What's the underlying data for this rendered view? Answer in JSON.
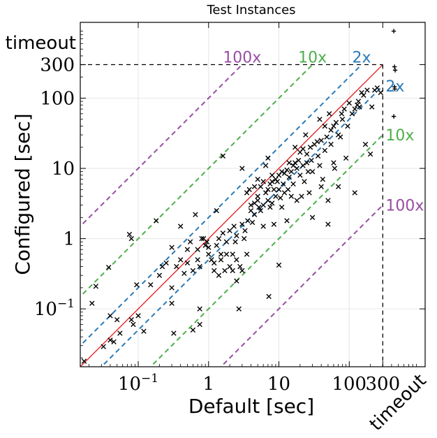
{
  "chart_data": {
    "type": "scatter",
    "title": "Test Instances",
    "xlabel": "Default [sec]",
    "ylabel": "Configured [sec]",
    "xscale": "log",
    "yscale": "log",
    "xlim": [
      0.015,
      1200
    ],
    "ylim": [
      0.015,
      1200
    ],
    "x_ticks": [
      {
        "value": 0.1,
        "mant": "10",
        "exp": "−1"
      },
      {
        "value": 1,
        "mant": "1",
        "exp": ""
      },
      {
        "value": 10,
        "mant": "10",
        "exp": ""
      },
      {
        "value": 100,
        "mant": "100",
        "exp": ""
      },
      {
        "value": 300,
        "mant": "300",
        "exp": ""
      }
    ],
    "y_ticks": [
      {
        "value": 0.1,
        "mant": "10",
        "exp": "−1"
      },
      {
        "value": 1,
        "mant": "1",
        "exp": ""
      },
      {
        "value": 10,
        "mant": "10",
        "exp": ""
      },
      {
        "value": 100,
        "mant": "100",
        "exp": ""
      },
      {
        "value": 300,
        "mant": "300",
        "exp": ""
      }
    ],
    "timeout_value": 300,
    "timeout_label_x": "timeout",
    "timeout_label_y": "timeout",
    "grid": true,
    "diagonal_color": "#e31a1c",
    "reference_lines": [
      {
        "factor": 2,
        "label": "2x",
        "color": "#2a7ab8"
      },
      {
        "factor": 10,
        "label": "10x",
        "color": "#4daf4a"
      },
      {
        "factor": 100,
        "label": "100x",
        "color": "#984ea3"
      }
    ],
    "points": [
      [
        0.017,
        0.018
      ],
      [
        0.022,
        0.12
      ],
      [
        0.025,
        0.21
      ],
      [
        0.032,
        0.029
      ],
      [
        0.038,
        0.39
      ],
      [
        0.04,
        0.08
      ],
      [
        0.04,
        0.036
      ],
      [
        0.045,
        0.034
      ],
      [
        0.05,
        0.07
      ],
      [
        0.055,
        0.045
      ],
      [
        0.08,
        0.07
      ],
      [
        0.085,
        0.06
      ],
      [
        0.075,
        1.15
      ],
      [
        0.08,
        1.0
      ],
      [
        0.095,
        0.22
      ],
      [
        0.1,
        0.08
      ],
      [
        0.12,
        0.048
      ],
      [
        0.15,
        0.22
      ],
      [
        0.18,
        1.8
      ],
      [
        0.2,
        0.3
      ],
      [
        0.22,
        0.4
      ],
      [
        0.25,
        0.45
      ],
      [
        0.3,
        0.2
      ],
      [
        0.3,
        0.12
      ],
      [
        0.3,
        0.75
      ],
      [
        0.32,
        0.045
      ],
      [
        0.35,
        0.4
      ],
      [
        0.4,
        0.5
      ],
      [
        0.4,
        1.5
      ],
      [
        0.45,
        0.32
      ],
      [
        0.5,
        0.7
      ],
      [
        0.5,
        0.45
      ],
      [
        0.55,
        0.9
      ],
      [
        0.6,
        0.35
      ],
      [
        0.6,
        0.05
      ],
      [
        0.65,
        2.2
      ],
      [
        0.7,
        0.7
      ],
      [
        0.7,
        0.5
      ],
      [
        0.75,
        0.4
      ],
      [
        0.75,
        0.1
      ],
      [
        0.75,
        0.06
      ],
      [
        0.8,
        1.0
      ],
      [
        0.85,
        1.0
      ],
      [
        0.9,
        0.8
      ],
      [
        0.95,
        0.9
      ],
      [
        1.0,
        0.6
      ],
      [
        1.0,
        0.75
      ],
      [
        1.1,
        0.5
      ],
      [
        1.2,
        0.35
      ],
      [
        1.2,
        0.45
      ],
      [
        1.3,
        0.8
      ],
      [
        1.3,
        2.5
      ],
      [
        1.4,
        1.0
      ],
      [
        1.4,
        0.3
      ],
      [
        1.5,
        0.5
      ],
      [
        1.5,
        0.6
      ],
      [
        1.6,
        15
      ],
      [
        1.6,
        1.2
      ],
      [
        1.7,
        0.35
      ],
      [
        1.8,
        0.6
      ],
      [
        1.8,
        0.9
      ],
      [
        2.0,
        1.3
      ],
      [
        2.0,
        0.4
      ],
      [
        2.2,
        0.6
      ],
      [
        2.2,
        0.35
      ],
      [
        2.3,
        1.5
      ],
      [
        2.4,
        0.9
      ],
      [
        2.5,
        0.5
      ],
      [
        2.5,
        1.1
      ],
      [
        2.5,
        0.25
      ],
      [
        2.7,
        0.1
      ],
      [
        2.8,
        0.4
      ],
      [
        3.0,
        1.6
      ],
      [
        3.0,
        0.35
      ],
      [
        3.0,
        10
      ],
      [
        3.2,
        1.0
      ],
      [
        3.3,
        1.3
      ],
      [
        3.5,
        4.5
      ],
      [
        3.5,
        0.6
      ],
      [
        3.6,
        1.8
      ],
      [
        3.8,
        5
      ],
      [
        4.0,
        2.5
      ],
      [
        4.0,
        3
      ],
      [
        4.2,
        1.7
      ],
      [
        4.5,
        5.5
      ],
      [
        4.5,
        3.2
      ],
      [
        4.5,
        2.2
      ],
      [
        5,
        4
      ],
      [
        5,
        3.5
      ],
      [
        5,
        7
      ],
      [
        5.2,
        2.8
      ],
      [
        5.5,
        5.5
      ],
      [
        5.5,
        2.5
      ],
      [
        6,
        6.5
      ],
      [
        6,
        3
      ],
      [
        6,
        1.5
      ],
      [
        6.5,
        4.5
      ],
      [
        6.5,
        11
      ],
      [
        7,
        5
      ],
      [
        7,
        3.5
      ],
      [
        7,
        14
      ],
      [
        7.2,
        0.15
      ],
      [
        7.5,
        6
      ],
      [
        7.5,
        2.8
      ],
      [
        8,
        6.5
      ],
      [
        8,
        8
      ],
      [
        8,
        3.2
      ],
      [
        8.5,
        5
      ],
      [
        8.5,
        1.6
      ],
      [
        9,
        7
      ],
      [
        9,
        4
      ],
      [
        9.5,
        6.5
      ],
      [
        10,
        8
      ],
      [
        10,
        0.42
      ],
      [
        10,
        5
      ],
      [
        10.5,
        3.8
      ],
      [
        11,
        9
      ],
      [
        11,
        2.8
      ],
      [
        11.5,
        6
      ],
      [
        12,
        8.5
      ],
      [
        12,
        4.5
      ],
      [
        13,
        9.5
      ],
      [
        13,
        1.8
      ],
      [
        13.5,
        5
      ],
      [
        14,
        12
      ],
      [
        14,
        7.5
      ],
      [
        15,
        9
      ],
      [
        15,
        4
      ],
      [
        16,
        11
      ],
      [
        16,
        6
      ],
      [
        17,
        20
      ],
      [
        17,
        12
      ],
      [
        18,
        10
      ],
      [
        18,
        3.5
      ],
      [
        19,
        13
      ],
      [
        20,
        17
      ],
      [
        20,
        8
      ],
      [
        21,
        4
      ],
      [
        22,
        19
      ],
      [
        22,
        11
      ],
      [
        23,
        6.5
      ],
      [
        24,
        30
      ],
      [
        25,
        12
      ],
      [
        25,
        16
      ],
      [
        26,
        9
      ],
      [
        27,
        4.5
      ],
      [
        28,
        20
      ],
      [
        29,
        13
      ],
      [
        30,
        9
      ],
      [
        30,
        2
      ],
      [
        32,
        22
      ],
      [
        35,
        24
      ],
      [
        36,
        15
      ],
      [
        38,
        50
      ],
      [
        38,
        11
      ],
      [
        40,
        25
      ],
      [
        40,
        5.5
      ],
      [
        42,
        7
      ],
      [
        45,
        40
      ],
      [
        45,
        18
      ],
      [
        48,
        28
      ],
      [
        50,
        3.5
      ],
      [
        50,
        1.6
      ],
      [
        52,
        60
      ],
      [
        55,
        35
      ],
      [
        55,
        22
      ],
      [
        60,
        40
      ],
      [
        60,
        12
      ],
      [
        62,
        10
      ],
      [
        65,
        45
      ],
      [
        70,
        30
      ],
      [
        70,
        5.5
      ],
      [
        75,
        28
      ],
      [
        78,
        60
      ],
      [
        80,
        50
      ],
      [
        85,
        70
      ],
      [
        90,
        14
      ],
      [
        95,
        40
      ],
      [
        100,
        85
      ],
      [
        110,
        60
      ],
      [
        120,
        70
      ],
      [
        120,
        4.5
      ],
      [
        130,
        80
      ],
      [
        135,
        90
      ],
      [
        140,
        75
      ],
      [
        150,
        120
      ],
      [
        160,
        110
      ],
      [
        170,
        22
      ],
      [
        180,
        130
      ],
      [
        200,
        16
      ],
      [
        210,
        75
      ],
      [
        230,
        130
      ],
      [
        250,
        140
      ],
      [
        280,
        120
      ],
      [
        430,
        900
      ],
      [
        440,
        280
      ],
      [
        450,
        250
      ],
      [
        430,
        55
      ],
      [
        440,
        145
      ],
      [
        445,
        135
      ]
    ]
  }
}
